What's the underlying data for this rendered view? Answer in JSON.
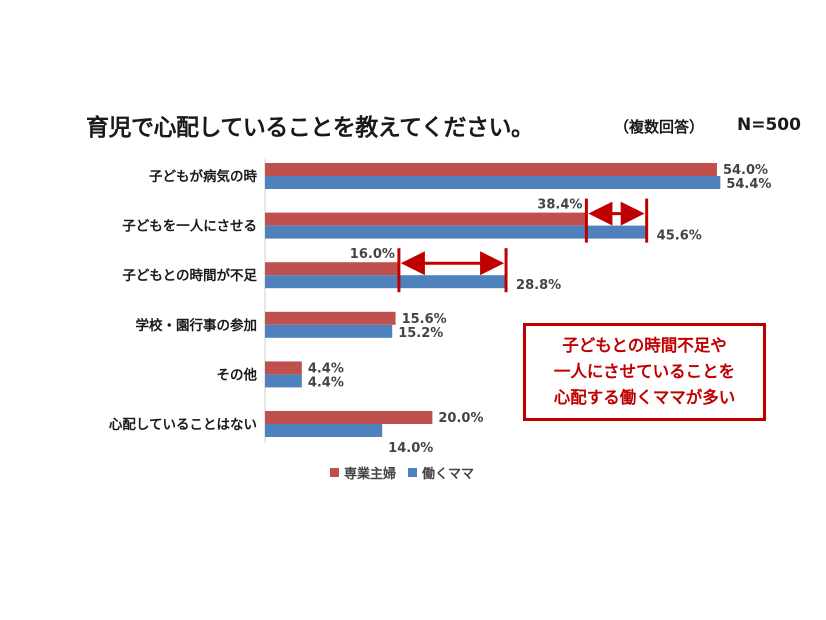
{
  "title": "育児で心配していることを教えてください。",
  "subtitle": "（複数回答）",
  "sample_size": "N=500",
  "colors": {
    "housewife": "#c0504d",
    "working": "#4f81bd",
    "accent": "#c00000"
  },
  "callout_lines": [
    "子どもとの時間不足や",
    "一人にさせていることを",
    "心配する働くママが多い"
  ],
  "chart_data": {
    "type": "bar",
    "orientation": "horizontal",
    "categories": [
      "子どもが病気の時",
      "子どもを一人にさせる",
      "子どもとの時間が不足",
      "学校・園行事の参加",
      "その他",
      "心配していることはない"
    ],
    "series": [
      {
        "name": "専業主婦",
        "values": [
          54.0,
          38.4,
          16.0,
          15.6,
          4.4,
          20.0
        ]
      },
      {
        "name": "働くママ",
        "values": [
          54.4,
          45.6,
          28.8,
          15.2,
          4.4,
          14.0
        ]
      }
    ],
    "value_labels": [
      [
        "54.0%",
        "38.4%",
        "16.0%",
        "15.6%",
        "4.4%",
        "20.0%"
      ],
      [
        "54.4%",
        "45.6%",
        "28.8%",
        "15.2%",
        "4.4%",
        "14.0%"
      ]
    ],
    "xlim": [
      0,
      60
    ],
    "gap_highlights": [
      1,
      2
    ],
    "legend_position": "bottom"
  }
}
